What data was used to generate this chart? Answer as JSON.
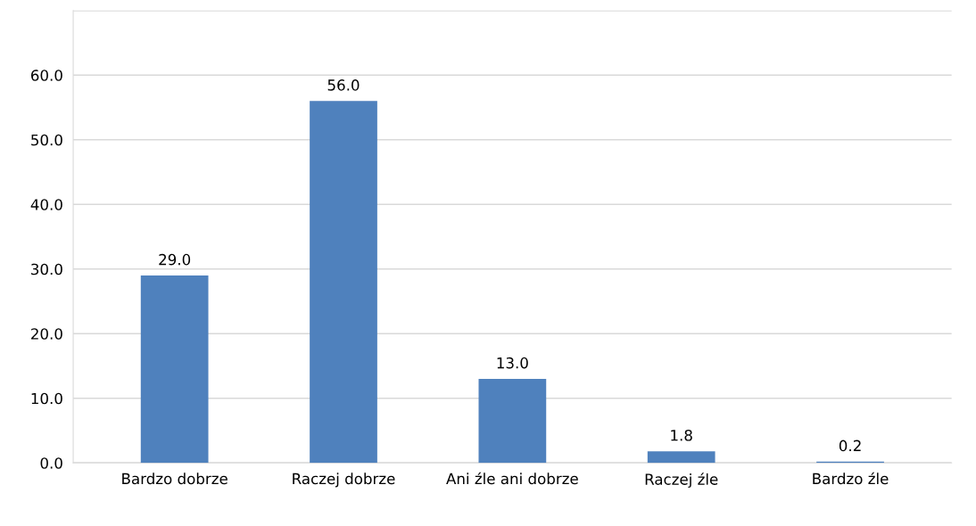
{
  "chart_data": {
    "type": "bar",
    "categories": [
      "Bardzo dobrze",
      "Raczej dobrze",
      "Ani źle ani dobrze",
      "Raczej źle",
      "Bardzo źle"
    ],
    "values": [
      29.0,
      56.0,
      13.0,
      1.8,
      0.2
    ],
    "value_labels": [
      "29.0",
      "56.0",
      "13.0",
      "1.8",
      "0.2"
    ],
    "color": "#4f81bd",
    "ylim": [
      0,
      70
    ],
    "yticks": [
      {
        "value": 0,
        "label": "0.0"
      },
      {
        "value": 10,
        "label": "10.0"
      },
      {
        "value": 20,
        "label": "20.0"
      },
      {
        "value": 30,
        "label": "30.0"
      },
      {
        "value": 40,
        "label": "40.0"
      },
      {
        "value": 50,
        "label": "50.0"
      },
      {
        "value": 60,
        "label": "60.0"
      },
      {
        "value": 70,
        "label": null
      }
    ],
    "grid": "y",
    "legend": false
  }
}
